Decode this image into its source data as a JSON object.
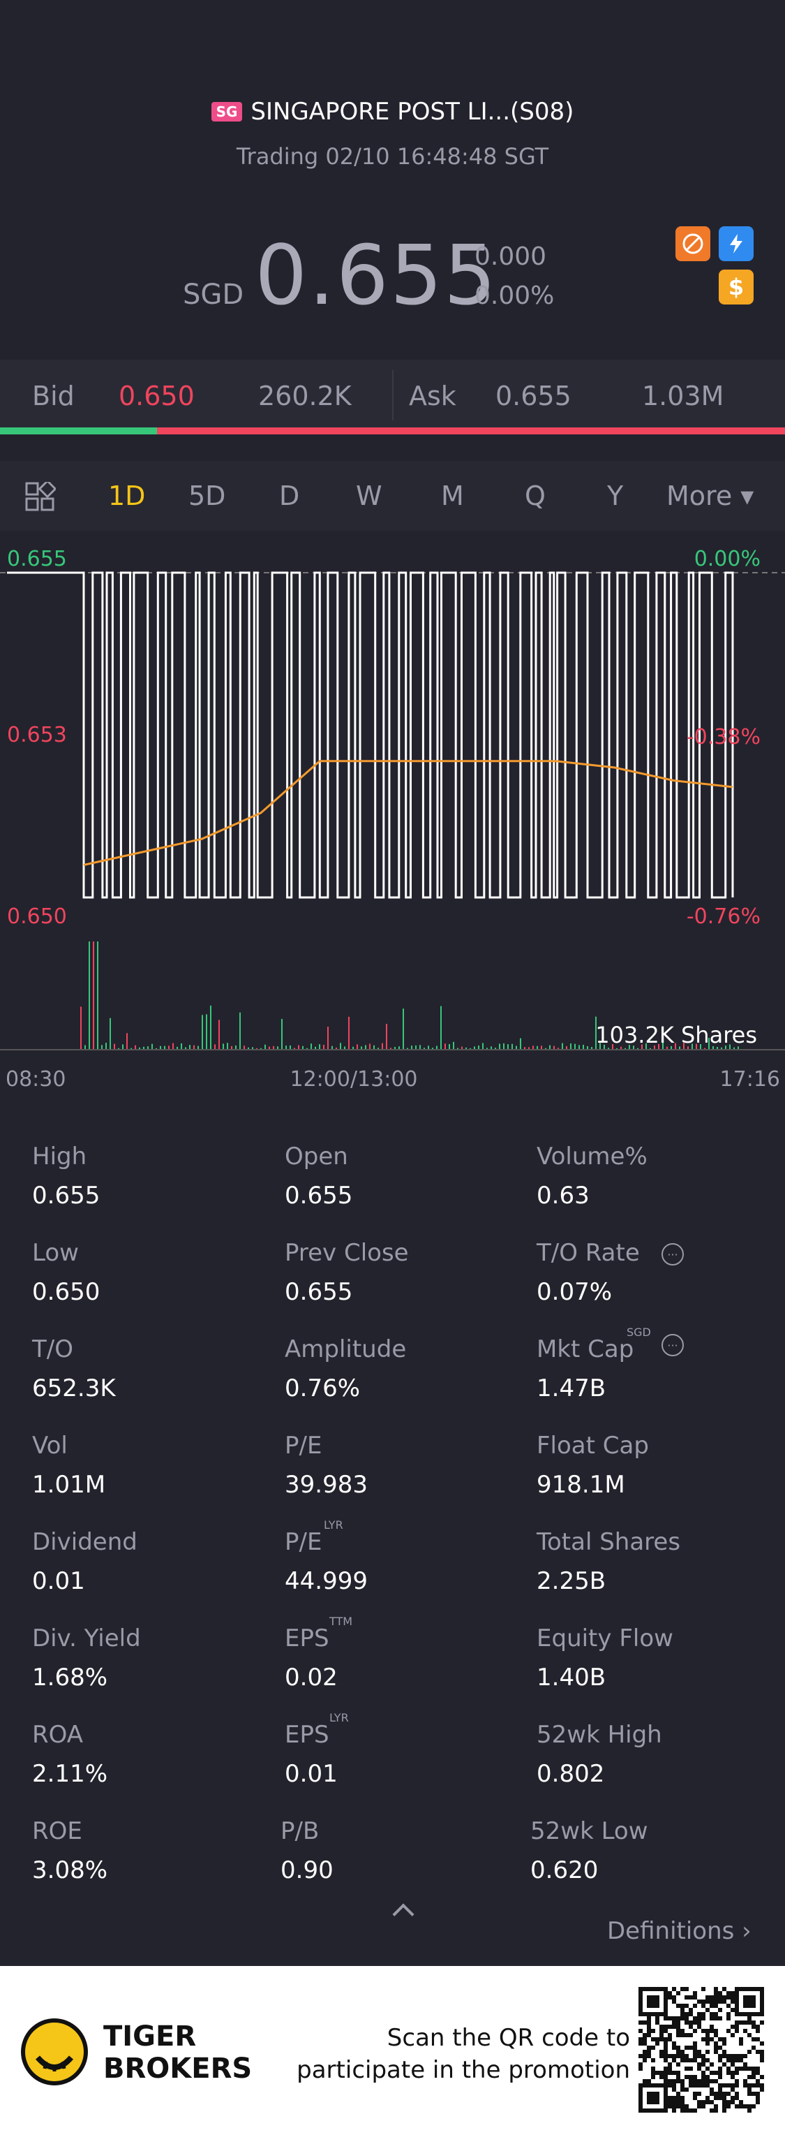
{
  "header": {
    "badge": "SG",
    "title": "SINGAPORE POST LI...(S08)",
    "subtitle": "Trading 02/10 16:48:48 SGT",
    "currency": "SGD",
    "price": "0.655",
    "change_abs": "0.000",
    "change_pct": "0.00%",
    "icons": [
      "no-short-icon",
      "lightning-icon",
      "dollar-icon"
    ]
  },
  "bidask": {
    "bid_label": "Bid",
    "bid_price": "0.650",
    "bid_size": "260.2K",
    "ask_label": "Ask",
    "ask_price": "0.655",
    "ask_size": "1.03M",
    "bid_ratio": 0.2
  },
  "tabs": {
    "items": [
      "1D",
      "5D",
      "D",
      "W",
      "M",
      "Q",
      "Y",
      "More ▾"
    ],
    "active": "1D"
  },
  "chart_data": {
    "type": "line",
    "y_left": [
      "0.655",
      "0.653",
      "0.650"
    ],
    "y_right": [
      "0.00%",
      "-0.38%",
      "-0.76%"
    ],
    "x_labels": [
      "08:30",
      "12:00/13:00",
      "17:16"
    ],
    "volume_label": "103.2K Shares",
    "ylim": [
      0.65,
      0.655
    ],
    "series": [
      {
        "values": []
      },
      {
        "values": [
          0.6505,
          0.6507,
          0.6509,
          0.6513,
          0.6521,
          0.6521,
          0.6521,
          0.6521,
          0.6521,
          0.652,
          0.6518,
          0.6517
        ]
      }
    ]
  },
  "stats": {
    "high_label": "High",
    "high": "0.655",
    "open_label": "Open",
    "open": "0.655",
    "volpct_label": "Volume%",
    "volpct": "0.63",
    "low_label": "Low",
    "low": "0.650",
    "prevclose_label": "Prev Close",
    "prevclose": "0.655",
    "torate_label": "T/O Rate",
    "torate": "0.07%",
    "to_label": "T/O",
    "to": "652.3K",
    "amp_label": "Amplitude",
    "amp": "0.76%",
    "mktcap_label": "Mkt Cap",
    "mktcap": "1.47B",
    "mktcap_sup": "SGD",
    "vol_label": "Vol",
    "vol": "1.01M",
    "pe_label": "P/E",
    "pe": "39.983",
    "floatcap_label": "Float Cap",
    "floatcap": "918.1M",
    "div_label": "Dividend",
    "div": "0.01",
    "pelyr_label": "P/E",
    "pelyr": "44.999",
    "pelyr_sup": "LYR",
    "totalshares_label": "Total Shares",
    "totalshares": "2.25B",
    "divy_label": "Div. Yield",
    "divy": "1.68%",
    "epsttm_label": "EPS",
    "epsttm": "0.02",
    "epsttm_sup": "TTM",
    "equity_label": "Equity Flow",
    "equity": "1.40B",
    "roa_label": "ROA",
    "roa": "2.11%",
    "epslyr_label": "EPS",
    "epslyr": "0.01",
    "epslyr_sup": "LYR",
    "high52_label": "52wk High",
    "high52": "0.802",
    "roe_label": "ROE",
    "roe": "3.08%",
    "pb_label": "P/B",
    "pb": "0.90",
    "low52_label": "52wk Low",
    "low52": "0.620",
    "definitions": "Definitions"
  },
  "footer": {
    "brand_line1": "TIGER",
    "brand_line2": "BROKERS",
    "promo_line1": "Scan the QR code to",
    "promo_line2": "participate in the promotion"
  },
  "colors": {
    "up": "#37c77a",
    "down": "#f0455d",
    "accent": "#f5c518",
    "avg_line": "#f29a2e"
  }
}
